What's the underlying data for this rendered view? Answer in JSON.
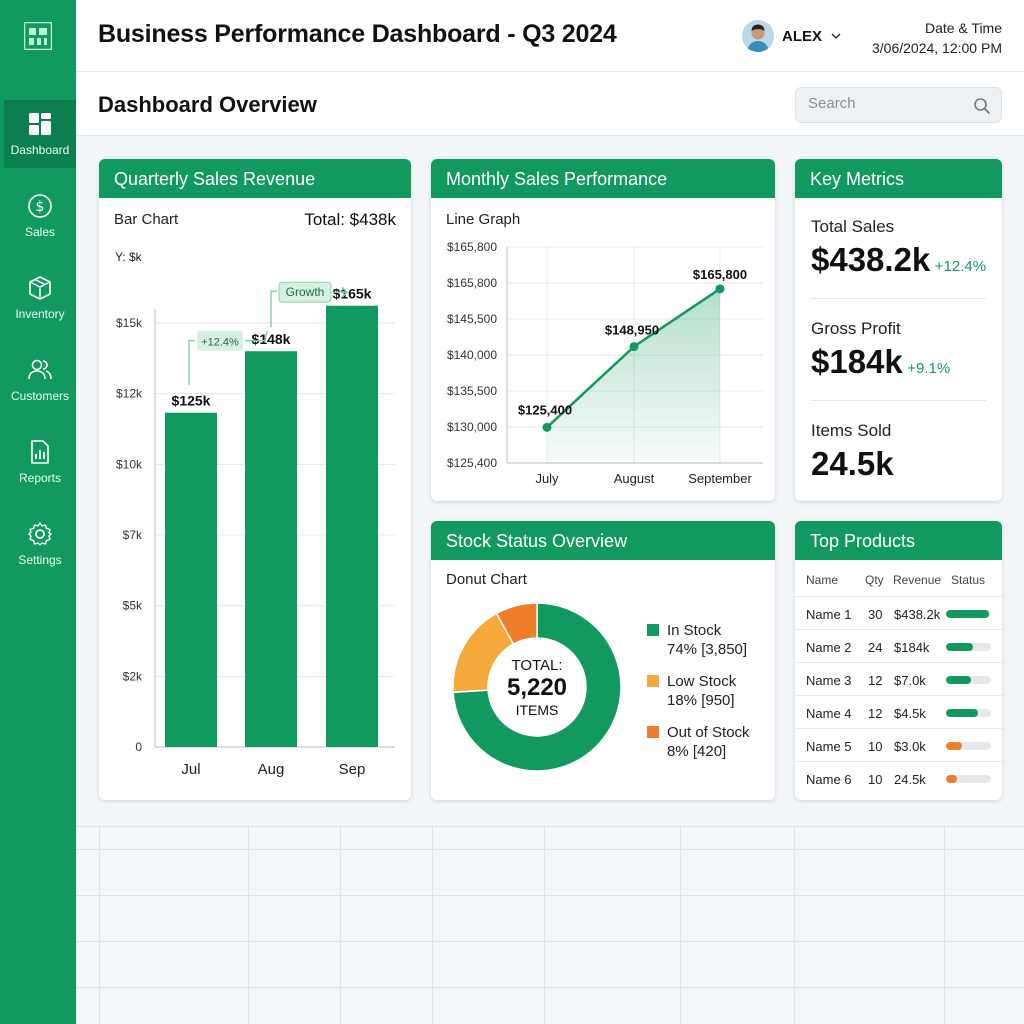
{
  "colors": {
    "brand": "#12995f",
    "brand_dark": "#0b7f4d",
    "warning": "#f4a93a",
    "danger": "#ef7d2c"
  },
  "header": {
    "title": "Business Performance Dashboard - Q3 2024",
    "user_name": "ALEX",
    "datetime_label": "Date & Time",
    "datetime_value": "3/06/2024, 12:00 PM"
  },
  "subheader": {
    "title": "Dashboard Overview",
    "search_placeholder": "Search"
  },
  "sidebar": {
    "items": [
      {
        "label": "Dashboard",
        "icon": "dashboard-icon",
        "active": true
      },
      {
        "label": "Sales",
        "icon": "dollar-icon"
      },
      {
        "label": "Inventory",
        "icon": "box-icon"
      },
      {
        "label": "Customers",
        "icon": "users-icon"
      },
      {
        "label": "Reports",
        "icon": "report-icon"
      },
      {
        "label": "Settings",
        "icon": "gear-icon"
      }
    ]
  },
  "quarterly": {
    "title": "Quarterly Sales Revenue",
    "chart_label": "Bar Chart",
    "total": "Total: $438k",
    "growth_label": "+12.4%",
    "growth_tag": "Growth"
  },
  "monthly": {
    "title": "Monthly Sales Performance",
    "chart_label": "Line Graph"
  },
  "stock": {
    "title": "Stock Status Overview",
    "chart_label": "Donut Chart",
    "center_label": "TOTAL:",
    "center_value": "5,220",
    "center_unit": "ITEMS",
    "legend": [
      {
        "name": "In Stock",
        "detail": "74% [3,850]",
        "color": "#12995f"
      },
      {
        "name": "Low Stock",
        "detail": "18% [950]",
        "color": "#f4a93a"
      },
      {
        "name": "Out of Stock",
        "detail": "8% [420]",
        "color": "#ef7d2c"
      }
    ]
  },
  "metrics": {
    "title": "Key Metrics",
    "items": [
      {
        "label": "Total Sales",
        "value": "$438.2k",
        "change": "+12.4%"
      },
      {
        "label": "Gross Profit",
        "value": "$184k",
        "change": "+9.1%"
      },
      {
        "label": "Items Sold",
        "value": "24.5k",
        "change": ""
      }
    ]
  },
  "products": {
    "title": "Top Products",
    "columns": [
      "Name",
      "Qty",
      "Revenue",
      "Status"
    ],
    "rows": [
      {
        "name": "Name 1",
        "qty": "30",
        "revenue": "$438.2k",
        "status": 0.95,
        "color": "#12995f"
      },
      {
        "name": "Name 2",
        "qty": "24",
        "revenue": "$184k",
        "status": 0.6,
        "color": "#12995f"
      },
      {
        "name": "Name 3",
        "qty": "12",
        "revenue": "$7.0k",
        "status": 0.55,
        "color": "#12995f"
      },
      {
        "name": "Name 4",
        "qty": "12",
        "revenue": "$4.5k",
        "status": 0.72,
        "color": "#12995f"
      },
      {
        "name": "Name 5",
        "qty": "10",
        "revenue": "$3.0k",
        "status": 0.35,
        "color": "#ef7d2c"
      },
      {
        "name": "Name 6",
        "qty": "10",
        "revenue": "24.5k",
        "status": 0.25,
        "color": "#ef7d2c"
      }
    ]
  },
  "chart_data": [
    {
      "type": "bar",
      "ylabel": "Y: $k",
      "categories": [
        "Jul",
        "Aug",
        "Sep"
      ],
      "values": [
        125,
        148,
        165
      ],
      "value_labels": [
        "$125k",
        "$148k",
        "$165k"
      ],
      "y_ticks": [
        "0",
        "$2k",
        "$5k",
        "$7k",
        "$10k",
        "$12k",
        "$15k"
      ],
      "ylim": [
        0,
        175
      ]
    },
    {
      "type": "line",
      "categories": [
        "July",
        "August",
        "September"
      ],
      "values": [
        125400,
        148950,
        165800
      ],
      "value_labels": [
        "$125,400",
        "$148,950",
        "$165,800"
      ],
      "y_ticks": [
        "$125,400",
        "$130,000",
        "$135,500",
        "$140,000",
        "$145,500",
        "$165,800",
        "$165,800"
      ],
      "ylim": [
        115000,
        178000
      ]
    },
    {
      "type": "pie",
      "donut": true,
      "categories": [
        "In Stock",
        "Low Stock",
        "Out of Stock"
      ],
      "values": [
        74,
        18,
        8
      ],
      "colors": [
        "#12995f",
        "#f4a93a",
        "#ef7d2c"
      ]
    }
  ]
}
